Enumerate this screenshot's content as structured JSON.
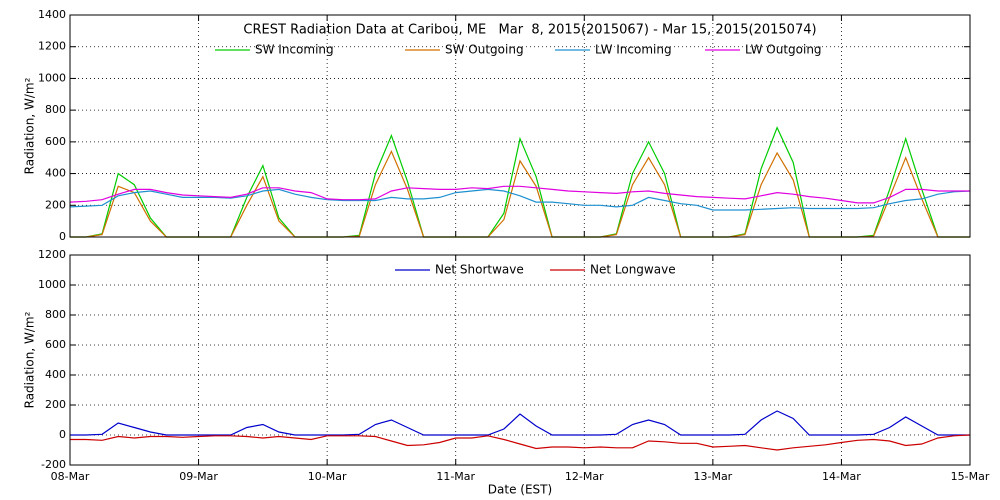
{
  "chart_data": [
    {
      "type": "line",
      "title": "CREST Radiation Data at Caribou, ME   Mar  8, 2015(2015067) - Mar 15, 2015(2015074)",
      "y_label": "Radiation, W/m²",
      "x": [
        0,
        3,
        6,
        9,
        12,
        15,
        18,
        21,
        24,
        27,
        30,
        33,
        36,
        39,
        42,
        45,
        48,
        51,
        54,
        57,
        60,
        63,
        66,
        69,
        72,
        75,
        78,
        81,
        84,
        87,
        90,
        93,
        96,
        99,
        102,
        105,
        108,
        111,
        114,
        117,
        120,
        123,
        126,
        129,
        132,
        135,
        138,
        141,
        144,
        147,
        150,
        153,
        156,
        159,
        162,
        165,
        168
      ],
      "xlim": [
        0,
        168
      ],
      "xticks": [
        0,
        24,
        48,
        72,
        96,
        120,
        144,
        168
      ],
      "ylim": [
        0,
        1400
      ],
      "yticks": [
        0,
        200,
        400,
        600,
        800,
        1000,
        1200,
        1400
      ],
      "grid": true,
      "series": [
        {
          "name": "SW Incoming",
          "color": "#00cc00",
          "values": [
            0,
            0,
            20,
            400,
            330,
            120,
            0,
            0,
            0,
            0,
            0,
            250,
            450,
            120,
            0,
            0,
            0,
            0,
            10,
            400,
            640,
            350,
            0,
            0,
            0,
            0,
            0,
            150,
            620,
            380,
            0,
            0,
            0,
            0,
            20,
            400,
            600,
            400,
            0,
            0,
            0,
            0,
            20,
            430,
            690,
            470,
            0,
            0,
            0,
            0,
            10,
            300,
            620,
            300,
            0,
            0,
            0
          ]
        },
        {
          "name": "SW Outgoing",
          "color": "#d07000",
          "values": [
            0,
            0,
            15,
            320,
            280,
            100,
            0,
            0,
            0,
            0,
            0,
            200,
            380,
            100,
            0,
            0,
            0,
            0,
            5,
            330,
            540,
            300,
            0,
            0,
            0,
            0,
            0,
            110,
            480,
            320,
            0,
            0,
            0,
            0,
            15,
            330,
            500,
            330,
            0,
            0,
            0,
            0,
            15,
            330,
            530,
            360,
            0,
            0,
            0,
            0,
            5,
            250,
            500,
            240,
            0,
            0,
            0
          ]
        },
        {
          "name": "LW Incoming",
          "color": "#1e90d0",
          "values": [
            190,
            195,
            200,
            260,
            280,
            290,
            270,
            250,
            250,
            250,
            245,
            260,
            290,
            300,
            270,
            250,
            235,
            230,
            230,
            230,
            250,
            240,
            240,
            250,
            280,
            290,
            300,
            290,
            260,
            220,
            220,
            210,
            200,
            200,
            190,
            200,
            250,
            230,
            210,
            200,
            170,
            170,
            170,
            175,
            180,
            185,
            180,
            180,
            180,
            180,
            185,
            210,
            230,
            240,
            270,
            285,
            290
          ]
        },
        {
          "name": "LW Outgoing",
          "color": "#e000e0",
          "values": [
            220,
            225,
            235,
            270,
            300,
            300,
            280,
            265,
            260,
            255,
            250,
            270,
            310,
            310,
            290,
            280,
            240,
            235,
            235,
            240,
            290,
            310,
            305,
            300,
            300,
            310,
            305,
            320,
            320,
            310,
            300,
            290,
            285,
            280,
            275,
            285,
            290,
            275,
            265,
            255,
            250,
            245,
            240,
            260,
            280,
            270,
            255,
            245,
            230,
            215,
            215,
            250,
            300,
            300,
            290,
            290,
            290
          ]
        }
      ]
    },
    {
      "type": "line",
      "y_label": "Radiation, W/m²",
      "x_label": "Date (EST)",
      "x": [
        0,
        3,
        6,
        9,
        12,
        15,
        18,
        21,
        24,
        27,
        30,
        33,
        36,
        39,
        42,
        45,
        48,
        51,
        54,
        57,
        60,
        63,
        66,
        69,
        72,
        75,
        78,
        81,
        84,
        87,
        90,
        93,
        96,
        99,
        102,
        105,
        108,
        111,
        114,
        117,
        120,
        123,
        126,
        129,
        132,
        135,
        138,
        141,
        144,
        147,
        150,
        153,
        156,
        159,
        162,
        165,
        168
      ],
      "xlim": [
        0,
        168
      ],
      "xticks": [
        {
          "value": 0,
          "label": "08-Mar"
        },
        {
          "value": 24,
          "label": "09-Mar"
        },
        {
          "value": 48,
          "label": "10-Mar"
        },
        {
          "value": 72,
          "label": "11-Mar"
        },
        {
          "value": 96,
          "label": "12-Mar"
        },
        {
          "value": 120,
          "label": "13-Mar"
        },
        {
          "value": 144,
          "label": "14-Mar"
        },
        {
          "value": 168,
          "label": "15-Mar"
        }
      ],
      "ylim": [
        -200,
        1200
      ],
      "yticks": [
        -200,
        0,
        200,
        400,
        600,
        800,
        1000,
        1200
      ],
      "grid": true,
      "series": [
        {
          "name": "Net Shortwave",
          "color": "#0000cc",
          "values": [
            0,
            0,
            5,
            80,
            50,
            20,
            0,
            0,
            0,
            0,
            0,
            50,
            70,
            20,
            0,
            0,
            0,
            0,
            5,
            70,
            100,
            50,
            0,
            0,
            0,
            0,
            0,
            40,
            140,
            60,
            0,
            0,
            0,
            0,
            5,
            70,
            100,
            70,
            0,
            0,
            0,
            0,
            5,
            100,
            160,
            110,
            0,
            0,
            0,
            0,
            5,
            50,
            120,
            60,
            0,
            0,
            0
          ]
        },
        {
          "name": "Net Longwave",
          "color": "#cc0000",
          "values": [
            -30,
            -30,
            -35,
            -10,
            -20,
            -10,
            -10,
            -15,
            -10,
            -5,
            -5,
            -10,
            -20,
            -10,
            -20,
            -30,
            -5,
            -5,
            -5,
            -10,
            -40,
            -70,
            -65,
            -50,
            -20,
            -20,
            -5,
            -30,
            -60,
            -90,
            -80,
            -80,
            -85,
            -80,
            -85,
            -85,
            -40,
            -45,
            -55,
            -55,
            -80,
            -75,
            -70,
            -85,
            -100,
            -85,
            -75,
            -65,
            -50,
            -35,
            -30,
            -40,
            -70,
            -60,
            -20,
            -5,
            0
          ]
        }
      ]
    }
  ]
}
